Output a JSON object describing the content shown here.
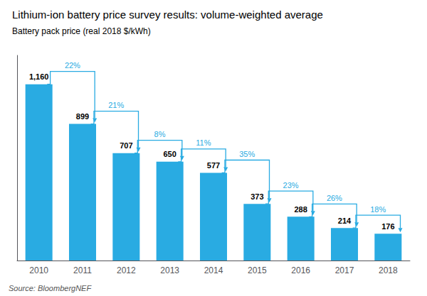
{
  "chart_data": {
    "type": "bar",
    "title": "Lithium-ion battery price survey results: volume-weighted average",
    "ylabel": "Battery pack price (real 2018 $/kWh)",
    "source": "Source: BloombergNEF",
    "categories": [
      "2010",
      "2011",
      "2012",
      "2013",
      "2014",
      "2015",
      "2016",
      "2017",
      "2018"
    ],
    "values": [
      1160,
      899,
      707,
      650,
      577,
      373,
      288,
      214,
      176
    ],
    "value_labels": [
      "1,160",
      "899",
      "707",
      "650",
      "577",
      "373",
      "288",
      "214",
      "176"
    ],
    "data_labels": true,
    "annotations": [
      "22%",
      "21%",
      "8%",
      "11%",
      "35%",
      "23%",
      "26%",
      "18%"
    ],
    "color": "#29ABE2",
    "ylim": [
      0,
      1350
    ],
    "tick_labels": "x",
    "grid": false
  }
}
